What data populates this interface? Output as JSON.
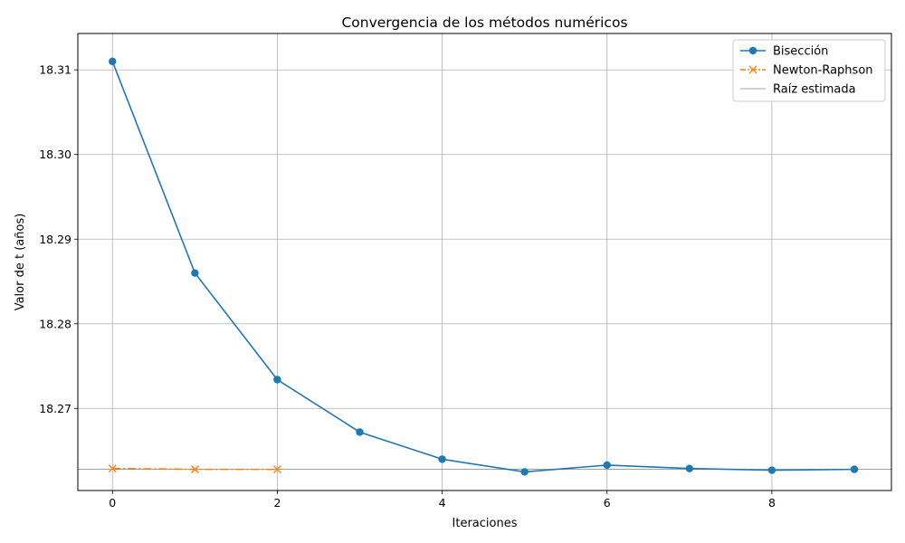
{
  "chart_data": {
    "type": "line",
    "title": "Convergencia de los métodos numéricos",
    "xlabel": "Iteraciones",
    "ylabel": "Valor de t (años)",
    "xlim": [
      -0.42,
      9.45
    ],
    "ylim": [
      18.2603,
      18.3143
    ],
    "xticks": [
      0,
      2,
      4,
      6,
      8
    ],
    "yticks": [
      18.27,
      18.28,
      18.29,
      18.3,
      18.31
    ],
    "ytick_labels": [
      "18.27",
      "18.28",
      "18.29",
      "18.30",
      "18.31"
    ],
    "grid": true,
    "legend_position": "top-right",
    "series": [
      {
        "name": "Bisección",
        "color": "#1f77b4",
        "marker": "circle",
        "linestyle": "solid",
        "x": [
          0,
          1,
          2,
          3,
          4,
          5,
          6,
          7,
          8,
          9
        ],
        "y": [
          18.311,
          18.286,
          18.2734,
          18.2672,
          18.264,
          18.2625,
          18.2633,
          18.2629,
          18.2627,
          18.2628
        ]
      },
      {
        "name": "Newton-Raphson",
        "color": "#ff7f0e",
        "marker": "x",
        "linestyle": "dashdot",
        "x": [
          0,
          1,
          2
        ],
        "y": [
          18.2629,
          18.2628,
          18.2628
        ]
      }
    ],
    "reference_line": {
      "name": "Raíz estimada",
      "color": "#808080",
      "y": 18.2628
    }
  }
}
